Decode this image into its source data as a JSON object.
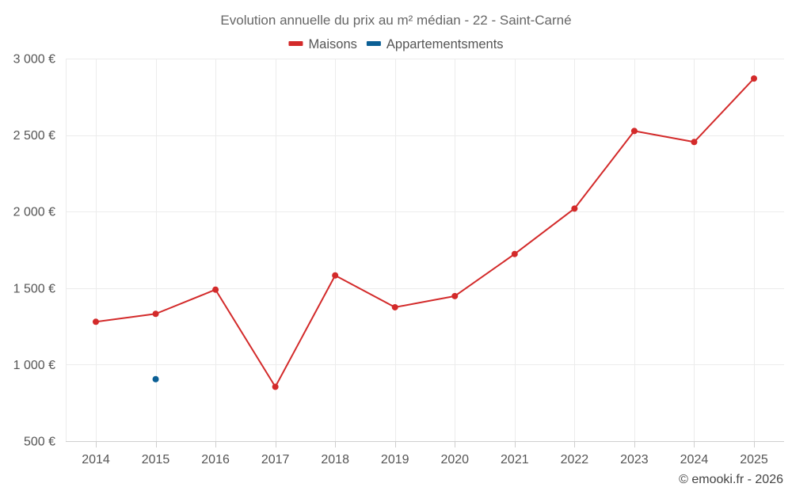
{
  "chart_data": {
    "type": "line",
    "title": "Evolution annuelle du prix au m² médian - 22 - Saint-Carné",
    "categories": [
      "2014",
      "2015",
      "2016",
      "2017",
      "2018",
      "2019",
      "2020",
      "2021",
      "2022",
      "2023",
      "2024",
      "2025"
    ],
    "series": [
      {
        "name": "Maisons",
        "color": "#d32a2a",
        "values": [
          1280,
          1332,
          1490,
          855,
          1583,
          1375,
          1448,
          1723,
          2020,
          2527,
          2455,
          2870
        ]
      },
      {
        "name": "Appartementsments",
        "color": "#0b5f95",
        "values": [
          null,
          905,
          null,
          null,
          null,
          null,
          null,
          null,
          null,
          null,
          null,
          null
        ]
      }
    ],
    "ylim": [
      500,
      3000
    ],
    "yticks": [
      500,
      1000,
      1500,
      2000,
      2500,
      3000
    ],
    "ytick_labels": [
      "500 €",
      "1 000 €",
      "1 500 €",
      "2 000 €",
      "2 500 €",
      "3 000 €"
    ],
    "grid": true,
    "legend_position": "top-center",
    "xlabel": "",
    "ylabel": ""
  },
  "credit": "© emooki.fr - 2026"
}
